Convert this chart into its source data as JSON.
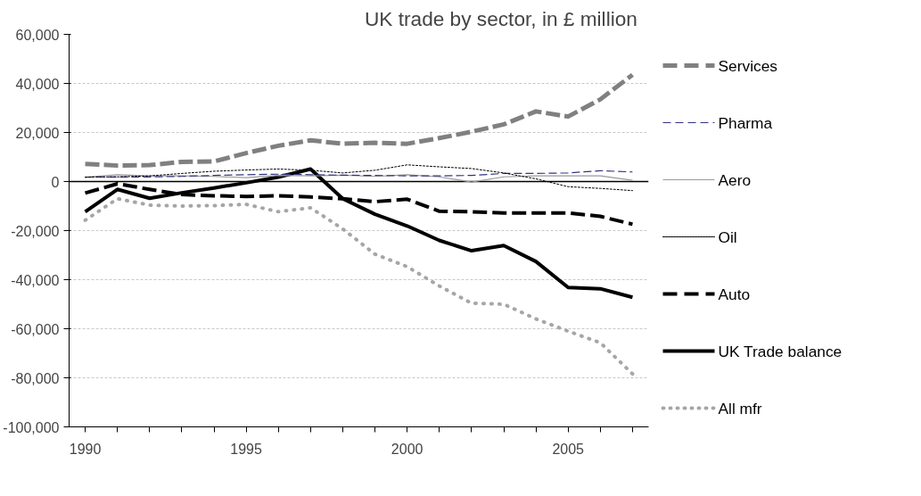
{
  "chart_data": {
    "type": "line",
    "title": "UK trade by sector,   in £ million",
    "categories": [
      "1990",
      null,
      null,
      null,
      null,
      "1995",
      null,
      null,
      null,
      null,
      "2000",
      null,
      null,
      null,
      null,
      "2005",
      null,
      null
    ],
    "ylim": [
      -100000,
      60000
    ],
    "yticks": [
      {
        "value": -100000,
        "label": "-100,000"
      },
      {
        "value": -80000,
        "label": "-80,000"
      },
      {
        "value": -60000,
        "label": "-60,000"
      },
      {
        "value": -40000,
        "label": "-40,000"
      },
      {
        "value": -20000,
        "label": "-20,000"
      },
      0,
      {
        "value": 20000,
        "label": "20,000"
      },
      {
        "value": 40000,
        "label": "40,000"
      },
      {
        "value": 60000,
        "label": "60,000"
      }
    ],
    "grid": "y",
    "legend": "right",
    "series": [
      {
        "name": "Services",
        "color": "#808080",
        "line_style": "dashed",
        "values": [
          7200,
          6500,
          6700,
          8000,
          8200,
          11600,
          14600,
          16800,
          15400,
          15800,
          15400,
          17700,
          20300,
          23300,
          28600,
          26500,
          33500,
          43500
        ]
      },
      {
        "name": "Pharma",
        "color": "#333380",
        "line_style": "dashed",
        "values": [
          1800,
          1900,
          1900,
          2100,
          2500,
          2800,
          3000,
          2800,
          2600,
          2500,
          2300,
          2300,
          2500,
          3300,
          3300,
          3500,
          4400,
          3900
        ]
      },
      {
        "name": "Aero",
        "color": "#999999",
        "line_style": "solid",
        "values": [
          1800,
          2800,
          2300,
          2300,
          2100,
          1600,
          2500,
          2300,
          2600,
          2100,
          2800,
          1900,
          -200,
          1900,
          2300,
          2300,
          2300,
          500
        ]
      },
      {
        "name": "Oil",
        "color": "#000000",
        "line_style": "dotted",
        "values": [
          1800,
          1900,
          2300,
          3300,
          4200,
          4700,
          5100,
          4600,
          3500,
          4600,
          6800,
          6000,
          5300,
          3500,
          1100,
          -2100,
          -2800,
          -3700
        ]
      },
      {
        "name": "Auto",
        "color": "#000000",
        "line_style": "dashed",
        "values": [
          -4700,
          -900,
          -3200,
          -5300,
          -5800,
          -6100,
          -5800,
          -6300,
          -7000,
          -8200,
          -7200,
          -12100,
          -12300,
          -12800,
          -12800,
          -12800,
          -14200,
          -17400
        ]
      },
      {
        "name": "UK Trade balance",
        "color": "#000000",
        "line_style": "solid",
        "values": [
          -12300,
          -3200,
          -6800,
          -4600,
          -2600,
          -500,
          1800,
          5100,
          -7000,
          -13300,
          -18100,
          -24000,
          -28200,
          -26100,
          -32600,
          -43200,
          -43700,
          -47200
        ]
      },
      {
        "name": "All mfr",
        "color": "#a6a6a6",
        "line_style": "dotted",
        "values": [
          -15800,
          -7000,
          -9600,
          -10000,
          -9800,
          -9300,
          -12300,
          -10700,
          -19300,
          -29600,
          -34700,
          -42600,
          -49600,
          -50000,
          -56000,
          -61000,
          -65700,
          -78400
        ]
      }
    ]
  }
}
